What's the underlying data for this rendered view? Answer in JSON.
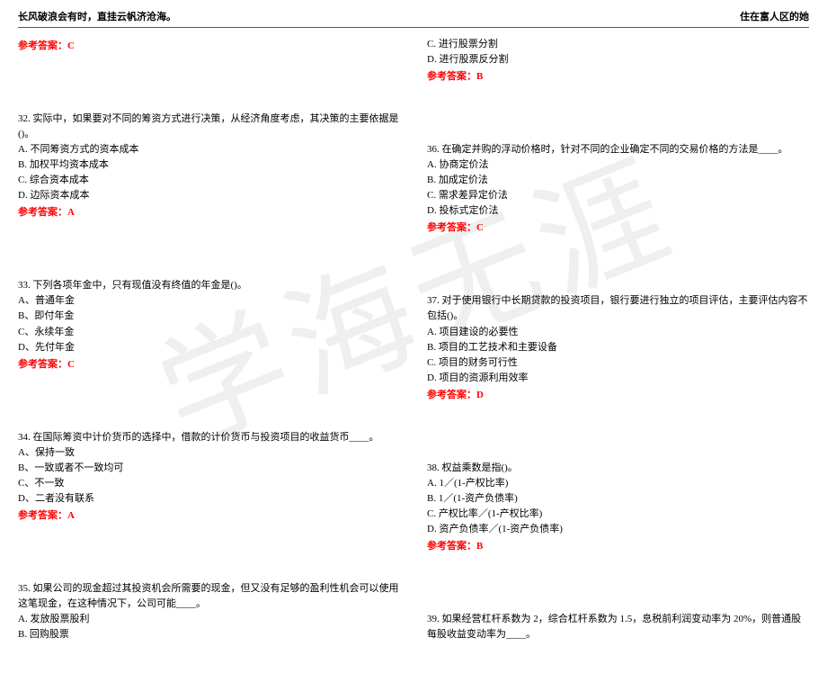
{
  "header": {
    "left": "长风破浪会有时，直挂云帆济沧海。",
    "right": "住在富人区的她"
  },
  "watermark": "学海无涯",
  "answer_label_prefix": "参考答案：",
  "left_col": {
    "ans_prev": "C",
    "q32": {
      "text": "32. 实际中，如果要对不同的筹资方式进行决策，从经济角度考虑，其决策的主要依据是()。",
      "opts": [
        "A. 不同筹资方式的资本成本",
        "B. 加权平均资本成本",
        "C. 综合资本成本",
        "D. 边际资本成本"
      ],
      "ans": "A"
    },
    "q33": {
      "text": "33. 下列各项年金中，只有现值没有终值的年金是()。",
      "opts": [
        "A、普通年金",
        "B、即付年金",
        "C、永续年金",
        "D、先付年金"
      ],
      "ans": "C"
    },
    "q34": {
      "text": "34. 在国际筹资中计价货币的选择中，借款的计价货币与投资项目的收益货币____。",
      "opts": [
        "A、保持一致",
        "B、一致或者不一致均可",
        "C、不一致",
        "D、二者没有联系"
      ],
      "ans": "A"
    },
    "q35": {
      "text": "35. 如果公司的现金超过其投资机会所需要的现金，但又没有足够的盈利性机会可以使用这笔现金，在这种情况下，公司可能____。",
      "opts": [
        "A. 发放股票股利",
        "B. 回购股票"
      ]
    }
  },
  "right_col": {
    "top_opts": [
      "C. 进行股票分割",
      "D. 进行股票反分割"
    ],
    "top_ans": "B",
    "q36": {
      "text": "36. 在确定并购的浮动价格时，针对不同的企业确定不同的交易价格的方法是____。",
      "opts": [
        "A. 协商定价法",
        "B. 加成定价法",
        "C. 需求差异定价法",
        "D. 投标式定价法"
      ],
      "ans": "C"
    },
    "q37": {
      "text": "37. 对于使用银行中长期贷款的投资项目，银行要进行独立的项目评估，主要评估内容不包括()。",
      "opts": [
        "A. 项目建设的必要性",
        "B. 项目的工艺技术和主要设备",
        "C. 项目的财务可行性",
        "D. 项目的资源利用效率"
      ],
      "ans": "D"
    },
    "q38": {
      "text": "38. 权益乘数是指()。",
      "opts": [
        "A. 1／(1-产权比率)",
        "B. 1／(1-资产负债率)",
        "C. 产权比率／(1-产权比率)",
        "D. 资产负债率／(1-资产负债率)"
      ],
      "ans": "B"
    },
    "q39": {
      "text": "39. 如果经营杠杆系数为 2，综合杠杆系数为 1.5，息税前利润变动率为 20%，则普通股每股收益变动率为____。"
    }
  }
}
